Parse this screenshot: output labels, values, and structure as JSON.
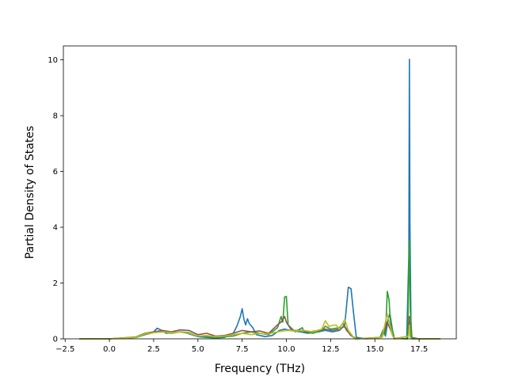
{
  "chart_data": {
    "type": "line",
    "xlabel": "Frequency (THz)",
    "ylabel": "Partial Density of States",
    "xlim": [
      -2.6,
      19.6
    ],
    "ylim": [
      0,
      10.5
    ],
    "xticks": [
      -2.5,
      0.0,
      2.5,
      5.0,
      7.5,
      10.0,
      12.5,
      15.0,
      17.5
    ],
    "xtick_labels": [
      "−2.5",
      "0.0",
      "2.5",
      "5.0",
      "7.5",
      "10.0",
      "12.5",
      "15.0",
      "17.5"
    ],
    "yticks": [
      0,
      2,
      4,
      6,
      8,
      10
    ],
    "ytick_labels": [
      "0",
      "2",
      "4",
      "6",
      "8",
      "10"
    ],
    "grid": false,
    "series": [
      {
        "color": "#1f77b4",
        "points": [
          [
            -1.7,
            0
          ],
          [
            0,
            0
          ],
          [
            1.5,
            0.05
          ],
          [
            2.0,
            0.15
          ],
          [
            2.5,
            0.25
          ],
          [
            2.7,
            0.38
          ],
          [
            2.9,
            0.32
          ],
          [
            3.2,
            0.2
          ],
          [
            3.6,
            0.22
          ],
          [
            4.0,
            0.25
          ],
          [
            4.4,
            0.2
          ],
          [
            5.0,
            0.08
          ],
          [
            5.5,
            0.05
          ],
          [
            6.0,
            0.03
          ],
          [
            6.5,
            0.05
          ],
          [
            7.0,
            0.2
          ],
          [
            7.2,
            0.45
          ],
          [
            7.4,
            0.8
          ],
          [
            7.5,
            1.08
          ],
          [
            7.6,
            0.7
          ],
          [
            7.7,
            0.5
          ],
          [
            7.8,
            0.72
          ],
          [
            7.9,
            0.55
          ],
          [
            8.1,
            0.4
          ],
          [
            8.3,
            0.15
          ],
          [
            8.8,
            0.08
          ],
          [
            9.2,
            0.12
          ],
          [
            9.6,
            0.3
          ],
          [
            9.9,
            0.35
          ],
          [
            10.2,
            0.3
          ],
          [
            10.8,
            0.25
          ],
          [
            11.2,
            0.2
          ],
          [
            11.8,
            0.25
          ],
          [
            12.2,
            0.3
          ],
          [
            12.6,
            0.25
          ],
          [
            13.0,
            0.3
          ],
          [
            13.3,
            0.5
          ],
          [
            13.5,
            1.85
          ],
          [
            13.65,
            1.8
          ],
          [
            13.8,
            0.9
          ],
          [
            13.95,
            0.05
          ],
          [
            14.5,
            0
          ],
          [
            15.3,
            0.05
          ],
          [
            15.45,
            0.3
          ],
          [
            15.6,
            0.1
          ],
          [
            15.75,
            0.7
          ],
          [
            15.85,
            0.9
          ],
          [
            15.95,
            0.2
          ],
          [
            16.1,
            0.02
          ],
          [
            16.8,
            0
          ],
          [
            16.92,
            3.0
          ],
          [
            16.95,
            10.02
          ],
          [
            16.98,
            4.0
          ],
          [
            17.05,
            0.05
          ],
          [
            17.5,
            0
          ],
          [
            18.7,
            0
          ]
        ]
      },
      {
        "color": "#2ca02c",
        "points": [
          [
            -1.7,
            0
          ],
          [
            0,
            0
          ],
          [
            1.5,
            0.05
          ],
          [
            2.0,
            0.15
          ],
          [
            2.5,
            0.22
          ],
          [
            3.0,
            0.25
          ],
          [
            3.5,
            0.2
          ],
          [
            4.0,
            0.25
          ],
          [
            4.5,
            0.22
          ],
          [
            5.0,
            0.1
          ],
          [
            5.5,
            0.08
          ],
          [
            6.0,
            0.05
          ],
          [
            7.0,
            0.1
          ],
          [
            7.5,
            0.2
          ],
          [
            8.0,
            0.25
          ],
          [
            8.5,
            0.2
          ],
          [
            9.0,
            0.15
          ],
          [
            9.5,
            0.4
          ],
          [
            9.7,
            0.8
          ],
          [
            9.8,
            0.6
          ],
          [
            9.9,
            1.5
          ],
          [
            10.0,
            1.52
          ],
          [
            10.1,
            0.5
          ],
          [
            10.5,
            0.25
          ],
          [
            10.9,
            0.4
          ],
          [
            11.0,
            0.25
          ],
          [
            11.5,
            0.2
          ],
          [
            12.0,
            0.3
          ],
          [
            12.2,
            0.45
          ],
          [
            12.5,
            0.35
          ],
          [
            13.0,
            0.4
          ],
          [
            13.2,
            0.55
          ],
          [
            13.4,
            0.3
          ],
          [
            13.7,
            0.1
          ],
          [
            14.0,
            0
          ],
          [
            15.3,
            0.05
          ],
          [
            15.5,
            0.35
          ],
          [
            15.6,
            0.15
          ],
          [
            15.7,
            1.7
          ],
          [
            15.8,
            1.4
          ],
          [
            15.85,
            0.9
          ],
          [
            16.0,
            0.3
          ],
          [
            16.1,
            0.02
          ],
          [
            16.85,
            0
          ],
          [
            16.95,
            3.55
          ],
          [
            17.0,
            1.0
          ],
          [
            17.1,
            0
          ],
          [
            18.7,
            0
          ]
        ]
      },
      {
        "color": "#8c564b",
        "points": [
          [
            -1.7,
            0
          ],
          [
            0,
            0
          ],
          [
            1.5,
            0.07
          ],
          [
            2.0,
            0.2
          ],
          [
            2.5,
            0.25
          ],
          [
            3.0,
            0.3
          ],
          [
            3.5,
            0.25
          ],
          [
            4.0,
            0.32
          ],
          [
            4.5,
            0.3
          ],
          [
            5.0,
            0.15
          ],
          [
            5.5,
            0.2
          ],
          [
            6.0,
            0.1
          ],
          [
            6.5,
            0.12
          ],
          [
            7.0,
            0.2
          ],
          [
            7.5,
            0.3
          ],
          [
            8.0,
            0.25
          ],
          [
            8.5,
            0.28
          ],
          [
            9.0,
            0.2
          ],
          [
            9.5,
            0.5
          ],
          [
            9.7,
            0.6
          ],
          [
            9.9,
            0.8
          ],
          [
            10.0,
            0.6
          ],
          [
            10.3,
            0.3
          ],
          [
            10.8,
            0.3
          ],
          [
            11.3,
            0.25
          ],
          [
            11.8,
            0.3
          ],
          [
            12.2,
            0.35
          ],
          [
            12.6,
            0.3
          ],
          [
            13.0,
            0.35
          ],
          [
            13.3,
            0.45
          ],
          [
            13.6,
            0.15
          ],
          [
            13.9,
            0
          ],
          [
            15.4,
            0.05
          ],
          [
            15.7,
            0.6
          ],
          [
            15.9,
            0.3
          ],
          [
            16.1,
            0
          ],
          [
            16.9,
            0.1
          ],
          [
            16.95,
            0.8
          ],
          [
            17.0,
            0.1
          ],
          [
            17.1,
            0
          ],
          [
            18.7,
            0
          ]
        ]
      },
      {
        "color": "#bcbd22",
        "points": [
          [
            -1.7,
            0
          ],
          [
            0,
            0
          ],
          [
            1.5,
            0.06
          ],
          [
            2.0,
            0.18
          ],
          [
            2.5,
            0.22
          ],
          [
            3.0,
            0.25
          ],
          [
            3.5,
            0.22
          ],
          [
            4.0,
            0.24
          ],
          [
            4.5,
            0.2
          ],
          [
            5.0,
            0.1
          ],
          [
            5.5,
            0.12
          ],
          [
            6.0,
            0.08
          ],
          [
            6.5,
            0.1
          ],
          [
            7.0,
            0.15
          ],
          [
            7.5,
            0.2
          ],
          [
            8.0,
            0.15
          ],
          [
            8.5,
            0.2
          ],
          [
            9.0,
            0.18
          ],
          [
            9.5,
            0.25
          ],
          [
            10.0,
            0.3
          ],
          [
            10.5,
            0.28
          ],
          [
            11.0,
            0.3
          ],
          [
            11.5,
            0.25
          ],
          [
            12.0,
            0.35
          ],
          [
            12.2,
            0.65
          ],
          [
            12.4,
            0.45
          ],
          [
            12.8,
            0.5
          ],
          [
            13.0,
            0.35
          ],
          [
            13.3,
            0.7
          ],
          [
            13.5,
            0.3
          ],
          [
            13.8,
            0.05
          ],
          [
            14.0,
            0
          ],
          [
            15.4,
            0.05
          ],
          [
            15.7,
            0.9
          ],
          [
            15.85,
            0.5
          ],
          [
            16.0,
            0.1
          ],
          [
            16.2,
            0
          ],
          [
            16.9,
            0.1
          ],
          [
            16.95,
            0.5
          ],
          [
            17.0,
            0.05
          ],
          [
            17.1,
            0
          ],
          [
            18.7,
            0
          ]
        ]
      }
    ]
  }
}
